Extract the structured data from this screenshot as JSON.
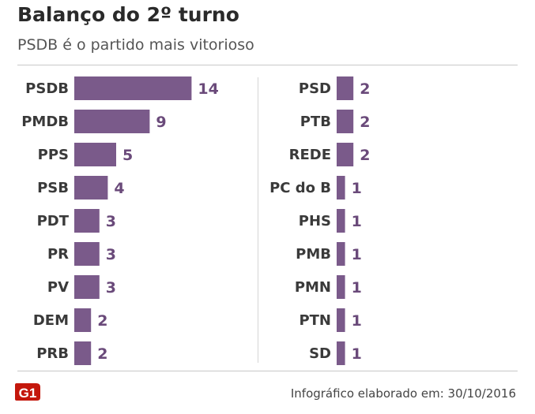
{
  "header": {
    "title": "Balanço do 2º turno",
    "subtitle": "PSDB é o partido mais vitorioso"
  },
  "footer": {
    "credit": "Infográfico elaborado em: 30/10/2016"
  },
  "logo": {
    "text": "G1",
    "color": "#c4170c"
  },
  "colors": {
    "bar": "#7a5a8a",
    "value_text": "#6a4a7a",
    "label_text": "#3a3a3a"
  },
  "chart_data": [
    {
      "type": "bar",
      "orientation": "horizontal",
      "title": "Balanço do 2º turno",
      "subtitle": "PSDB é o partido mais vitorioso",
      "categories": [
        "PSDB",
        "PMDB",
        "PPS",
        "PSB",
        "PDT",
        "PR",
        "PV",
        "DEM",
        "PRB"
      ],
      "values": [
        14,
        9,
        5,
        4,
        3,
        3,
        3,
        2,
        2
      ],
      "xlim": [
        0,
        14
      ],
      "grid": false,
      "data_labels": true
    },
    {
      "type": "bar",
      "orientation": "horizontal",
      "categories": [
        "PSD",
        "PTB",
        "REDE",
        "PC do B",
        "PHS",
        "PMB",
        "PMN",
        "PTN",
        "SD"
      ],
      "values": [
        2,
        2,
        2,
        1,
        1,
        1,
        1,
        1,
        1
      ],
      "xlim": [
        0,
        14
      ],
      "grid": false,
      "data_labels": true
    }
  ]
}
